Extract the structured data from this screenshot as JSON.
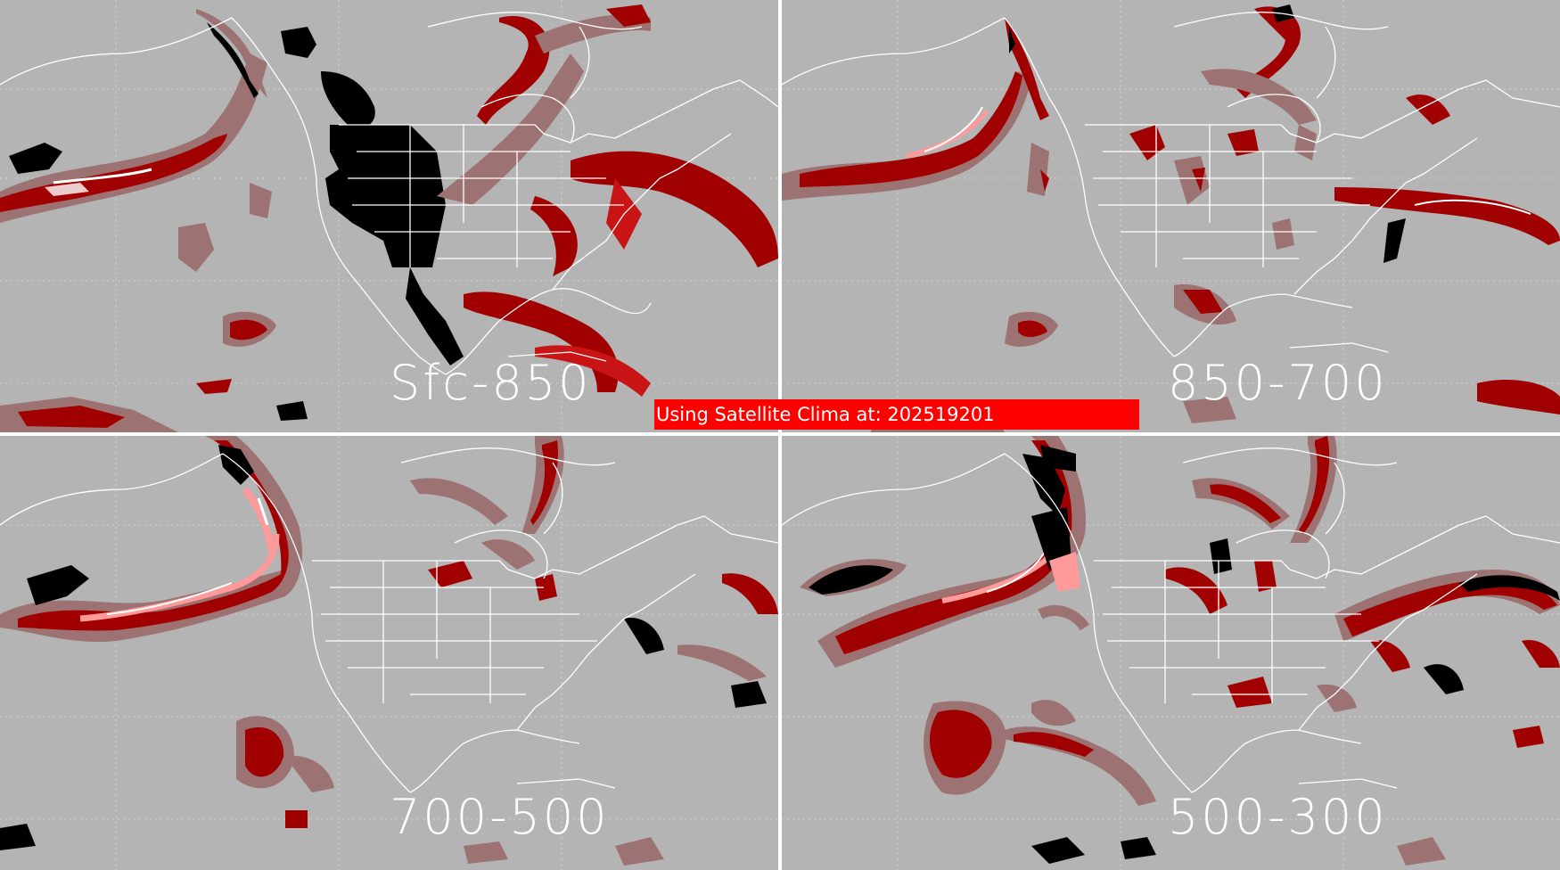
{
  "panels": [
    {
      "label": "Sfc-850"
    },
    {
      "label": "850-700"
    },
    {
      "label": "700-500"
    },
    {
      "label": "500-300"
    }
  ],
  "banner": {
    "text": "Using Satellite Clima at: 202519201"
  },
  "colors": {
    "background": "#b4b4b4",
    "dark_red": "#a00000",
    "mid_red": "#c81414",
    "pink": "#ff9a9a",
    "light": "#ffffff",
    "muted": "#9c7272",
    "black": "#000000",
    "grid": "#d2d2d2"
  }
}
